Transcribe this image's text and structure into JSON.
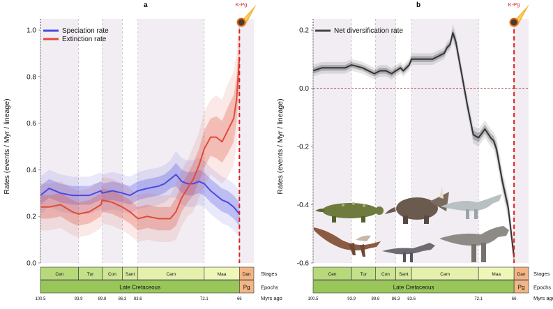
{
  "chart_data": [
    {
      "type": "line",
      "panel": "a",
      "xlabel": "Myrs ago",
      "ylabel": "Rates (events / Myr / lineage)",
      "xlim": [
        100.5,
        63.5
      ],
      "ylim": [
        0,
        1.0
      ],
      "yticks": [
        "0.0",
        "0.2",
        "0.4",
        "0.6",
        "0.8",
        "1.0"
      ],
      "legend_position": "top-left",
      "event_label": "K-Pg",
      "series": [
        {
          "name": "Speciation rate",
          "color": "#4a4ae0",
          "x": [
            100.5,
            99,
            97,
            95,
            93.9,
            92,
            90,
            89.8,
            88,
            86.3,
            85,
            83.6,
            82,
            80,
            79,
            78,
            77,
            76,
            75,
            74,
            73,
            72.1,
            71,
            70,
            69,
            68,
            67,
            66
          ],
          "values": [
            0.29,
            0.32,
            0.3,
            0.29,
            0.29,
            0.29,
            0.31,
            0.3,
            0.31,
            0.3,
            0.29,
            0.31,
            0.32,
            0.33,
            0.34,
            0.36,
            0.38,
            0.35,
            0.34,
            0.34,
            0.35,
            0.34,
            0.31,
            0.29,
            0.27,
            0.26,
            0.24,
            0.21
          ],
          "band_width": [
            0.04,
            0.04,
            0.04,
            0.04,
            0.04,
            0.04,
            0.04,
            0.04,
            0.04,
            0.04,
            0.04,
            0.04,
            0.04,
            0.04,
            0.04,
            0.04,
            0.05,
            0.05,
            0.05,
            0.05,
            0.05,
            0.05,
            0.05,
            0.05,
            0.05,
            0.05,
            0.05,
            0.05
          ]
        },
        {
          "name": "Extinction rate",
          "color": "#e04a3a",
          "x": [
            100.5,
            99,
            97,
            95,
            93.9,
            92,
            90,
            89.8,
            88,
            86.3,
            85,
            83.6,
            82,
            80,
            78,
            77,
            76,
            75,
            74,
            73,
            72.1,
            71,
            70,
            69,
            68,
            67,
            66.5,
            66
          ],
          "values": [
            0.24,
            0.24,
            0.25,
            0.22,
            0.21,
            0.22,
            0.25,
            0.27,
            0.26,
            0.24,
            0.22,
            0.19,
            0.2,
            0.19,
            0.19,
            0.22,
            0.28,
            0.32,
            0.36,
            0.42,
            0.49,
            0.54,
            0.54,
            0.52,
            0.57,
            0.62,
            0.7,
            0.88
          ],
          "band_width": [
            0.05,
            0.05,
            0.05,
            0.05,
            0.05,
            0.05,
            0.05,
            0.05,
            0.05,
            0.05,
            0.05,
            0.05,
            0.05,
            0.05,
            0.05,
            0.06,
            0.06,
            0.06,
            0.07,
            0.07,
            0.08,
            0.08,
            0.09,
            0.09,
            0.1,
            0.1,
            0.1,
            0.1
          ]
        }
      ]
    },
    {
      "type": "line",
      "panel": "b",
      "xlabel": "Myrs ago",
      "ylabel": "Rates (events / Myr / lineage)",
      "xlim": [
        100.5,
        63.5
      ],
      "ylim": [
        -0.6,
        0.2
      ],
      "yticks": [
        "-0.6",
        "-0.4",
        "-0.2",
        "0.0",
        "0.2"
      ],
      "legend_position": "top-left",
      "event_label": "K-Pg",
      "reference_line": 0.0,
      "series": [
        {
          "name": "Net diversification rate",
          "color": "#333333",
          "x": [
            100.5,
            99,
            97,
            95,
            93.9,
            92,
            90,
            89,
            88,
            87,
            86.3,
            85.5,
            85,
            84,
            83.6,
            82,
            80,
            79,
            78,
            77.5,
            77,
            76.5,
            76,
            75,
            74,
            73,
            72.1,
            71,
            70,
            69.5,
            69,
            68,
            67,
            66
          ],
          "values": [
            0.06,
            0.07,
            0.07,
            0.07,
            0.08,
            0.07,
            0.05,
            0.06,
            0.06,
            0.05,
            0.06,
            0.07,
            0.06,
            0.08,
            0.1,
            0.1,
            0.1,
            0.11,
            0.12,
            0.14,
            0.15,
            0.19,
            0.16,
            0.05,
            -0.06,
            -0.16,
            -0.17,
            -0.14,
            -0.17,
            -0.18,
            -0.21,
            -0.32,
            -0.41,
            -0.58
          ],
          "band_width": [
            0.01,
            0.01,
            0.01,
            0.01,
            0.01,
            0.01,
            0.01,
            0.01,
            0.01,
            0.01,
            0.01,
            0.01,
            0.01,
            0.01,
            0.01,
            0.01,
            0.01,
            0.01,
            0.01,
            0.01,
            0.01,
            0.015,
            0.015,
            0.015,
            0.015,
            0.015,
            0.015,
            0.015,
            0.015,
            0.015,
            0.02,
            0.02,
            0.02,
            0.02
          ]
        }
      ]
    }
  ],
  "timescale": {
    "stages_label": "Stages",
    "epochs_label": "Epochs",
    "myrs_label": "Myrs ago",
    "stages": [
      {
        "name": "Cen",
        "start": 100.5,
        "end": 93.9,
        "color": "#b8d97a"
      },
      {
        "name": "Tur",
        "start": 93.9,
        "end": 89.8,
        "color": "#c3e08a"
      },
      {
        "name": "Con",
        "start": 89.8,
        "end": 86.3,
        "color": "#cde594"
      },
      {
        "name": "Sant",
        "start": 86.3,
        "end": 83.6,
        "color": "#d8ea9f"
      },
      {
        "name": "Cam",
        "start": 83.6,
        "end": 72.1,
        "color": "#e4f0ac"
      },
      {
        "name": "Maa",
        "start": 72.1,
        "end": 66.0,
        "color": "#eef6b8"
      },
      {
        "name": "Dan",
        "start": 66.0,
        "end": 63.5,
        "color": "#f2b585"
      }
    ],
    "epochs": [
      {
        "name": "Late Cretaceous",
        "start": 100.5,
        "end": 66.0,
        "color": "#99c659"
      },
      {
        "name": "Pg",
        "start": 66.0,
        "end": 63.5,
        "color": "#f2b585"
      }
    ],
    "ages": [
      "100.5",
      "93.9",
      "89.8",
      "86.3",
      "83.6",
      "72.1",
      "66"
    ],
    "age_values": [
      100.5,
      93.9,
      89.8,
      86.3,
      83.6,
      72.1,
      66.0
    ]
  },
  "colors": {
    "shade": "#f1edf3",
    "kpg_line": "#e02020",
    "divider": "#b9b9b9"
  }
}
